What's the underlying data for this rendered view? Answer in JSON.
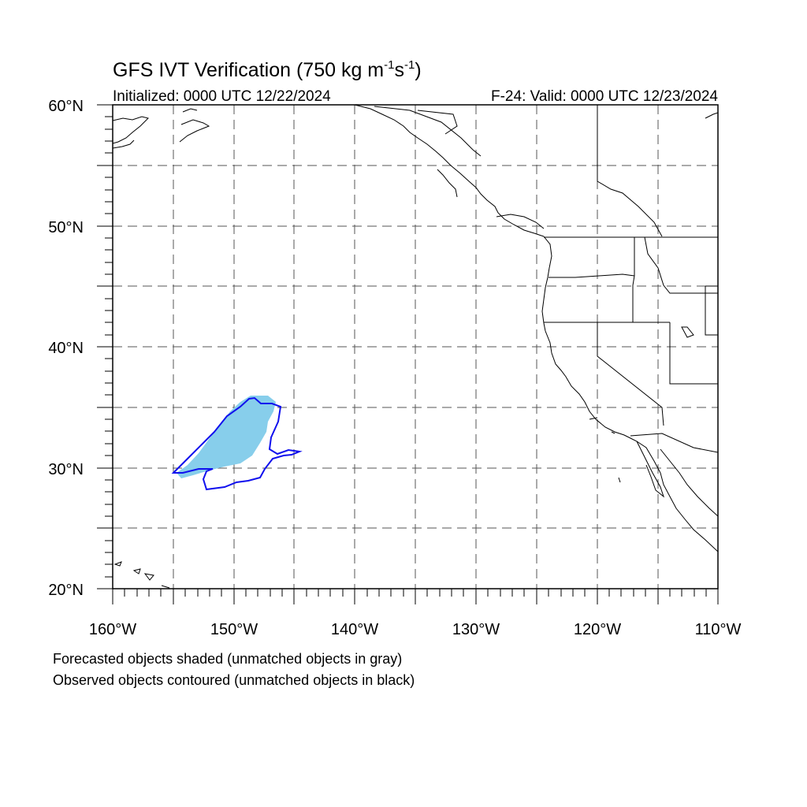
{
  "title": {
    "main": "GFS IVT Verification (750 kg m",
    "exp1": "-1",
    "mid": "s",
    "exp2": "-1",
    "close": ")"
  },
  "subtitle_left": "Initialized: 0000 UTC 12/22/2024",
  "subtitle_right": "F-24: Valid: 0000 UTC 12/23/2024",
  "lat_labels": [
    "60°N",
    "50°N",
    "40°N",
    "30°N",
    "20°N"
  ],
  "lon_labels": [
    "160°W",
    "150°W",
    "140°W",
    "130°W",
    "120°W",
    "110°W"
  ],
  "legend": {
    "line1": "Forecasted objects shaded (unmatched objects in gray)",
    "line2": "Observed objects contoured (unmatched objects in black)"
  },
  "colors": {
    "forecast_fill": "#87ceeb",
    "observed_contour": "#0000ff",
    "coastline": "#000000",
    "grid": "#555555"
  },
  "map_extent": {
    "lon": [
      -160,
      -110
    ],
    "lat": [
      20,
      60
    ]
  }
}
